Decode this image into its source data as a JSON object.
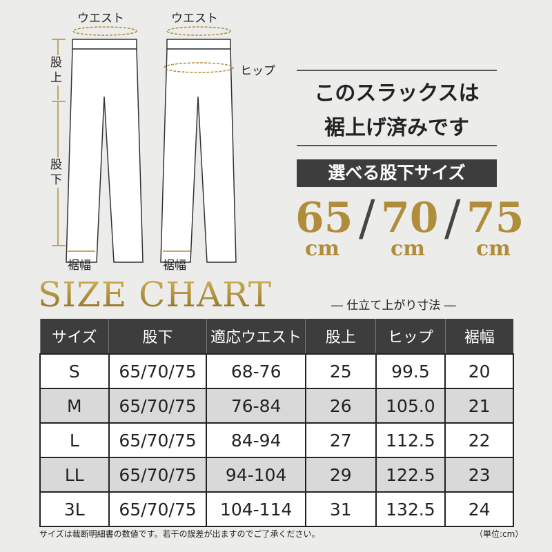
{
  "diagram": {
    "front_waist": "ウエスト",
    "back_waist": "ウエスト",
    "hip": "ヒップ",
    "rise": "股上",
    "inseam": "股下",
    "front_hem": "裾幅",
    "back_hem": "裾幅",
    "accent_color": "#b08d3a"
  },
  "headline": {
    "line1": "このスラックスは",
    "line2": "裾上げ済みです"
  },
  "inseam_band": "選べる股下サイズ",
  "inseam_options": [
    {
      "value": "65",
      "unit": "cm"
    },
    {
      "value": "70",
      "unit": "cm"
    },
    {
      "value": "75",
      "unit": "cm"
    }
  ],
  "size_chart": {
    "title": "SIZE CHART",
    "subtitle": "― 仕立て上がり寸法 ―",
    "columns": [
      "サイズ",
      "股下",
      "適応ウエスト",
      "股上",
      "ヒップ",
      "裾幅"
    ],
    "rows": [
      [
        "S",
        "65/70/75",
        "68-76",
        "25",
        "99.5",
        "20"
      ],
      [
        "M",
        "65/70/75",
        "76-84",
        "26",
        "105.0",
        "21"
      ],
      [
        "L",
        "65/70/75",
        "84-94",
        "27",
        "112.5",
        "22"
      ],
      [
        "LL",
        "65/70/75",
        "94-104",
        "29",
        "122.5",
        "23"
      ],
      [
        "3L",
        "65/70/75",
        "104-114",
        "31",
        "132.5",
        "24"
      ]
    ]
  },
  "footnote": "サイズは裁断明細書の数値です。若干の誤差が出ますのでご了承ください。",
  "unit_note": "（単位:cm）"
}
